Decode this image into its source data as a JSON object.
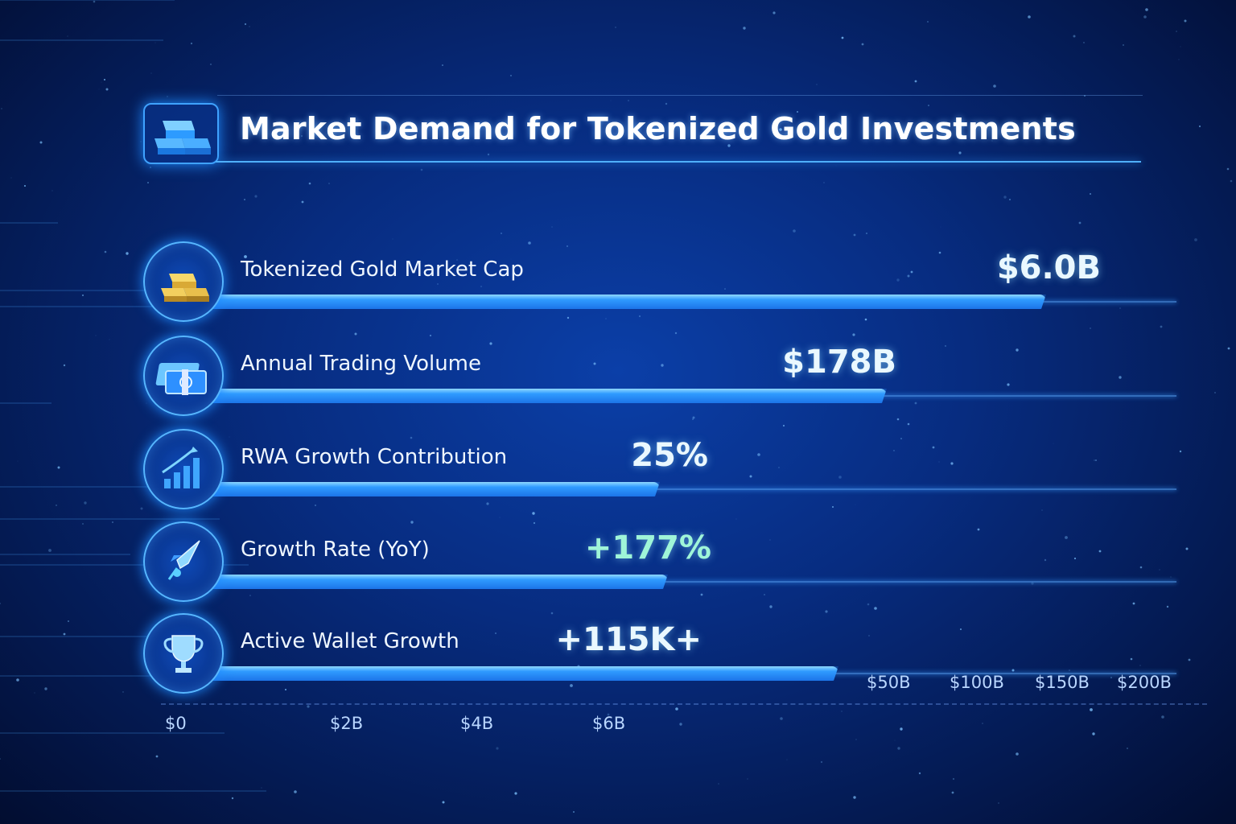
{
  "header": {
    "title": "Market Demand for Tokenized Gold Investments",
    "icon": "gold-bars-icon"
  },
  "chart_data": {
    "type": "bar",
    "orientation": "horizontal",
    "title": "Market Demand for Tokenized Gold Investments",
    "categories": [
      "Tokenized Gold Market Cap",
      "Annual Trading Volume",
      "RWA Growth Contribution",
      "Growth Rate (YoY)",
      "Active Wallet Growth"
    ],
    "value_labels": [
      "$6.0B",
      "$178B",
      "25%",
      "+177%",
      "+115K+"
    ],
    "values": [
      6.0,
      178,
      25,
      177,
      115000
    ],
    "units": [
      "billion USD",
      "billion USD",
      "percent",
      "percent",
      "wallets"
    ],
    "icons": [
      "gold-bars-icon",
      "cash-stack-icon",
      "growth-chart-icon",
      "rocket-icon",
      "trophy-icon"
    ],
    "x_ticks_lower": [
      "$0",
      "$2B",
      "$4B",
      "$6B"
    ],
    "x_ticks_upper": [
      "$50B",
      "$100B",
      "$150B",
      "$200B"
    ],
    "grid": false,
    "legend": "none",
    "colors": {
      "bar": "#2f9bff",
      "value_text": "#eaf8ff",
      "growth_value_text": "#9ff5d8",
      "background": "#072c80"
    }
  }
}
